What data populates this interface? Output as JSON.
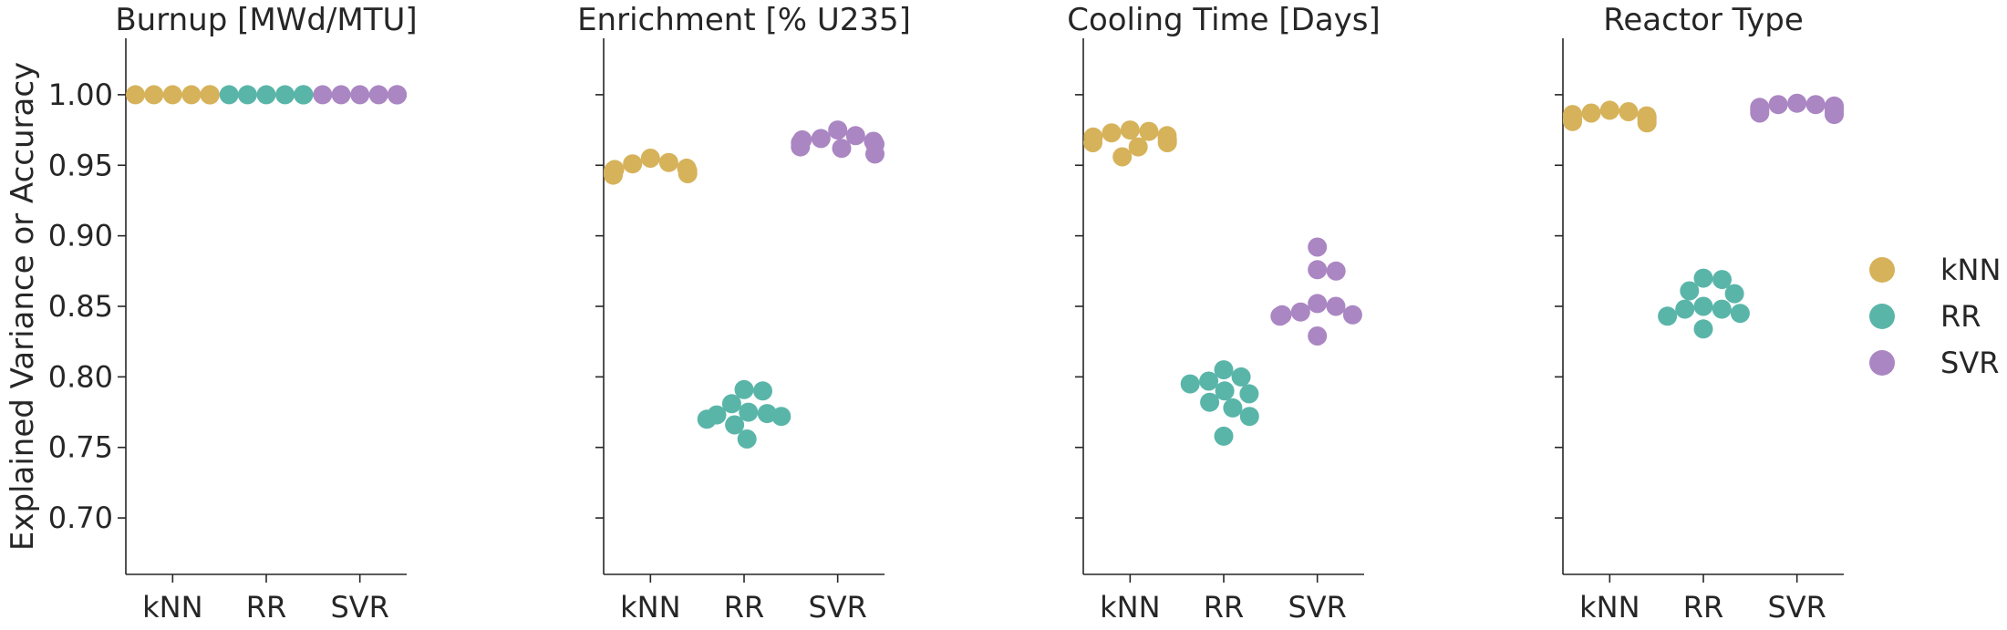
{
  "chart_data": {
    "type": "scatter",
    "ylabel": "Explained Variance or Accuracy",
    "ylim": [
      0.66,
      1.04
    ],
    "yticks": [
      "0.70",
      "0.75",
      "0.80",
      "0.85",
      "0.90",
      "0.95",
      "1.00"
    ],
    "categories": [
      "kNN",
      "RR",
      "SVR"
    ],
    "grid": false,
    "legend_position": "right",
    "legend": [
      {
        "name": "kNN",
        "color": "#d6b25a"
      },
      {
        "name": "RR",
        "color": "#5ab5a9"
      },
      {
        "name": "SVR",
        "color": "#aa86c2"
      }
    ],
    "panels": [
      {
        "title": "Burnup [MWd/MTU]",
        "series": [
          {
            "name": "kNN",
            "values": [
              1.0,
              1.0,
              1.0,
              1.0,
              1.0,
              1.0,
              1.0,
              1.0,
              1.0,
              1.0
            ]
          },
          {
            "name": "RR",
            "values": [
              1.0,
              1.0,
              1.0,
              1.0,
              1.0,
              1.0,
              1.0,
              1.0,
              1.0,
              1.0
            ]
          },
          {
            "name": "SVR",
            "values": [
              1.0,
              1.0,
              1.0,
              1.0,
              1.0,
              1.0,
              1.0,
              1.0,
              1.0,
              1.0
            ]
          }
        ]
      },
      {
        "title": "Enrichment [% U235]",
        "series": [
          {
            "name": "kNN",
            "values": [
              0.955,
              0.952,
              0.951,
              0.948,
              0.946,
              0.946,
              0.944,
              0.943,
              0.944,
              0.947
            ]
          },
          {
            "name": "RR",
            "values": [
              0.79,
              0.791,
              0.781,
              0.775,
              0.774,
              0.773,
              0.772,
              0.77,
              0.766,
              0.756
            ]
          },
          {
            "name": "SVR",
            "values": [
              0.975,
              0.971,
              0.969,
              0.968,
              0.967,
              0.966,
              0.965,
              0.963,
              0.962,
              0.958
            ]
          }
        ]
      },
      {
        "title": "Cooling Time [Days]",
        "series": [
          {
            "name": "kNN",
            "values": [
              0.975,
              0.974,
              0.973,
              0.971,
              0.97,
              0.968,
              0.966,
              0.966,
              0.963,
              0.956
            ]
          },
          {
            "name": "RR",
            "values": [
              0.805,
              0.8,
              0.797,
              0.795,
              0.79,
              0.788,
              0.782,
              0.778,
              0.772,
              0.758
            ]
          },
          {
            "name": "SVR",
            "values": [
              0.892,
              0.876,
              0.875,
              0.852,
              0.85,
              0.846,
              0.844,
              0.844,
              0.843,
              0.829
            ]
          }
        ]
      },
      {
        "title": "Reactor Type",
        "series": [
          {
            "name": "kNN",
            "values": [
              0.989,
              0.988,
              0.987,
              0.986,
              0.985,
              0.984,
              0.983,
              0.982,
              0.981,
              0.98
            ]
          },
          {
            "name": "RR",
            "values": [
              0.87,
              0.869,
              0.861,
              0.859,
              0.85,
              0.848,
              0.848,
              0.845,
              0.843,
              0.834
            ]
          },
          {
            "name": "SVR",
            "values": [
              0.994,
              0.993,
              0.993,
              0.992,
              0.991,
              0.99,
              0.989,
              0.988,
              0.987,
              0.986
            ]
          }
        ]
      }
    ]
  }
}
